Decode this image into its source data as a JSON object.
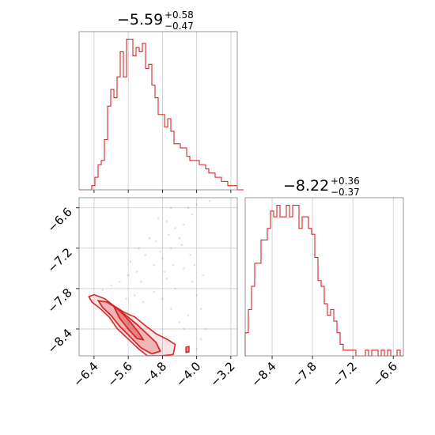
{
  "chart_data": {
    "type": "corner",
    "color": "#d62728",
    "params": [
      {
        "title": {
          "median": "−5.59",
          "plus": "+0.58",
          "minus": "−0.47"
        },
        "xlim": [
          -6.75,
          -3.05
        ],
        "ticks": [
          -6.4,
          -5.6,
          -4.8,
          -4.0,
          -3.2
        ],
        "tick_labels": [
          "−6.4",
          "−5.6",
          "−4.8",
          "−4.0",
          "−3.2"
        ],
        "hist": {
          "edges_start": -6.75,
          "bin_width": 0.074,
          "counts": [
            0,
            0,
            0,
            0,
            1,
            3,
            6,
            7,
            12,
            20,
            24,
            22,
            27,
            33,
            27,
            36,
            36,
            32,
            34,
            33,
            35,
            29,
            30,
            25,
            22,
            18,
            18,
            15,
            17,
            14,
            11,
            11,
            10,
            10,
            8,
            7,
            7,
            7,
            6,
            6,
            5,
            4,
            4,
            3,
            3,
            2,
            2,
            1,
            1,
            1,
            0,
            0
          ]
        }
      },
      {
        "title": {
          "median": "−8.22",
          "plus": "+0.36",
          "minus": "−0.37"
        },
        "xlim": [
          -8.8,
          -6.45
        ],
        "ticks": [
          -8.4,
          -7.8,
          -7.2,
          -6.6
        ],
        "tick_labels": [
          "−8.4",
          "−7.8",
          "−7.2",
          "−6.6"
        ],
        "hist": {
          "edges_start": -8.8,
          "bin_width": 0.047,
          "counts": [
            4,
            8,
            12,
            16,
            16,
            20,
            20,
            22,
            25,
            24,
            26,
            24,
            24,
            26,
            24,
            26,
            26,
            22,
            24,
            24,
            22,
            21,
            17,
            13,
            12,
            9,
            7,
            8,
            6,
            4,
            2,
            1,
            1,
            1,
            1,
            0,
            0,
            0,
            1,
            0,
            1,
            1,
            0,
            1,
            0,
            1,
            0,
            0,
            1,
            0
          ]
        }
      }
    ],
    "joint": {
      "ylim": [
        -8.8,
        -6.45
      ],
      "yticks": [
        -6.6,
        -7.2,
        -7.8,
        -8.4
      ],
      "ytick_labels": [
        "−6.6",
        "−7.2",
        "−7.8",
        "−8.4"
      ],
      "contour_outer": [
        [
          -6.52,
          -7.92
        ],
        [
          -6.4,
          -7.89
        ],
        [
          -6.15,
          -7.95
        ],
        [
          -5.95,
          -8.05
        ],
        [
          -5.7,
          -8.15
        ],
        [
          -5.45,
          -8.22
        ],
        [
          -5.2,
          -8.35
        ],
        [
          -4.95,
          -8.47
        ],
        [
          -4.7,
          -8.55
        ],
        [
          -4.5,
          -8.63
        ],
        [
          -4.55,
          -8.78
        ],
        [
          -4.85,
          -8.8
        ],
        [
          -5.15,
          -8.8
        ],
        [
          -5.35,
          -8.7
        ],
        [
          -5.6,
          -8.55
        ],
        [
          -5.85,
          -8.4
        ],
        [
          -6.05,
          -8.22
        ],
        [
          -6.25,
          -8.1
        ],
        [
          -6.45,
          -8.0
        ]
      ],
      "contour_mid": [
        [
          -6.3,
          -7.98
        ],
        [
          -6.1,
          -8.0
        ],
        [
          -5.9,
          -8.08
        ],
        [
          -5.65,
          -8.2
        ],
        [
          -5.4,
          -8.33
        ],
        [
          -5.15,
          -8.48
        ],
        [
          -4.95,
          -8.6
        ],
        [
          -4.85,
          -8.73
        ],
        [
          -5.05,
          -8.77
        ],
        [
          -5.3,
          -8.68
        ],
        [
          -5.55,
          -8.52
        ],
        [
          -5.8,
          -8.36
        ],
        [
          -6.0,
          -8.2
        ],
        [
          -6.2,
          -8.08
        ]
      ],
      "contour_inner": [
        [
          -5.95,
          -8.05
        ],
        [
          -5.75,
          -8.16
        ],
        [
          -5.55,
          -8.3
        ],
        [
          -5.35,
          -8.46
        ],
        [
          -5.25,
          -8.56
        ],
        [
          -5.4,
          -8.54
        ],
        [
          -5.6,
          -8.4
        ],
        [
          -5.8,
          -8.24
        ]
      ],
      "extra_blob": [
        [
          -4.25,
          -8.67
        ],
        [
          -4.18,
          -8.66
        ],
        [
          -4.18,
          -8.74
        ],
        [
          -4.25,
          -8.75
        ]
      ],
      "scatter": [
        [
          -4.9,
          -6.75
        ],
        [
          -4.7,
          -6.8
        ],
        [
          -4.5,
          -6.9
        ],
        [
          -4.3,
          -6.85
        ],
        [
          -4.1,
          -6.7
        ],
        [
          -4.4,
          -7.05
        ],
        [
          -4.6,
          -7.2
        ],
        [
          -4.8,
          -7.35
        ],
        [
          -5.0,
          -7.45
        ],
        [
          -5.2,
          -7.3
        ],
        [
          -5.4,
          -7.55
        ],
        [
          -5.6,
          -7.6
        ],
        [
          -5.8,
          -7.7
        ],
        [
          -6.0,
          -7.75
        ],
        [
          -6.2,
          -7.82
        ],
        [
          -4.3,
          -7.5
        ],
        [
          -4.1,
          -7.7
        ],
        [
          -4.0,
          -7.9
        ],
        [
          -3.9,
          -8.1
        ],
        [
          -4.2,
          -8.2
        ],
        [
          -4.4,
          -8.3
        ],
        [
          -4.6,
          -8.1
        ],
        [
          -4.8,
          -7.95
        ],
        [
          -5.0,
          -7.85
        ],
        [
          -5.3,
          -7.7
        ],
        [
          -3.8,
          -8.4
        ],
        [
          -3.9,
          -8.55
        ],
        [
          -4.0,
          -8.7
        ],
        [
          -4.3,
          -8.4
        ],
        [
          -4.5,
          -7.8
        ],
        [
          -4.7,
          -7.65
        ],
        [
          -4.95,
          -7.1
        ],
        [
          -5.1,
          -7.05
        ],
        [
          -4.2,
          -6.6
        ],
        [
          -4.0,
          -6.55
        ],
        [
          -3.7,
          -6.5
        ],
        [
          -4.6,
          -6.6
        ],
        [
          -4.75,
          -7.55
        ],
        [
          -5.45,
          -7.9
        ],
        [
          -5.65,
          -7.95
        ],
        [
          -5.25,
          -8.0
        ],
        [
          -4.15,
          -7.3
        ],
        [
          -4.35,
          -7.15
        ],
        [
          -4.55,
          -7.45
        ],
        [
          -3.85,
          -7.6
        ],
        [
          -4.05,
          -7.45
        ],
        [
          -5.55,
          -7.4
        ],
        [
          -5.35,
          -7.2
        ],
        [
          -4.85,
          -7.25
        ],
        [
          -4.65,
          -7.0
        ]
      ]
    }
  }
}
